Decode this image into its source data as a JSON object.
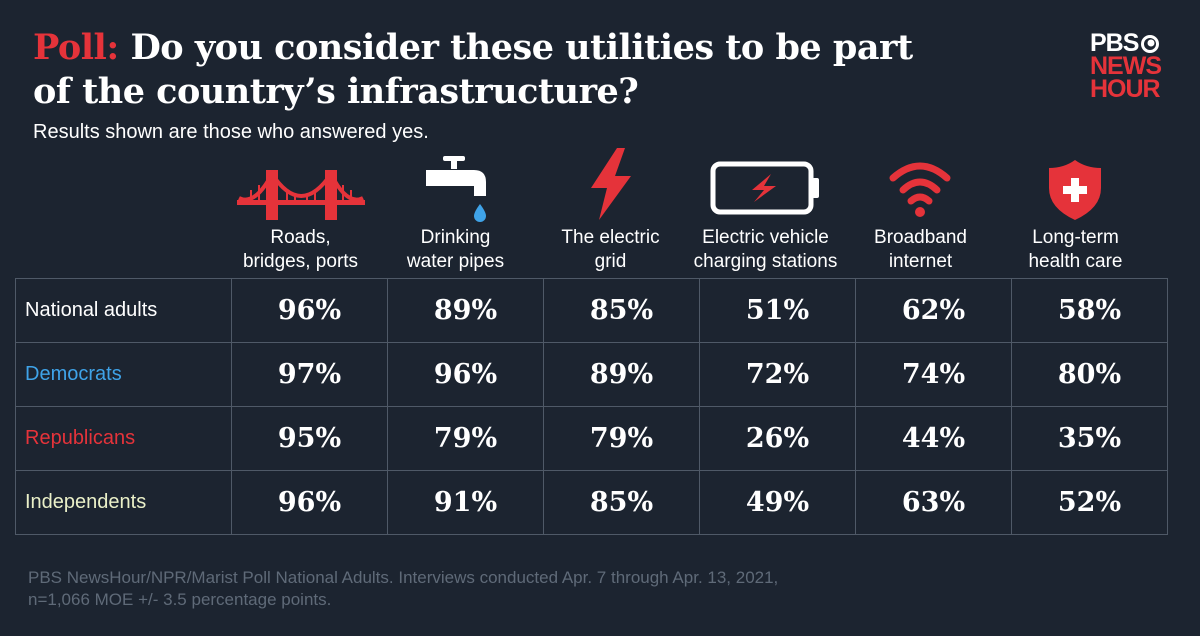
{
  "header": {
    "title_prefix": "Poll:",
    "title_rest": "Do you consider these utilities to be part of the country’s infrastructure?",
    "subtitle": "Results shown are those who answered yes."
  },
  "logo": {
    "line1": "PBS",
    "line2": "NEWS",
    "line3": "HOUR"
  },
  "footnote": "PBS NewsHour/NPR/Marist Poll National Adults. Interviews conducted Apr. 7 through Apr. 13, 2021, n=1,066 MOE +/- 3.5 percentage points.",
  "colors": {
    "accent_red": "#e5333a",
    "democrats": "#3fa3e8",
    "republicans": "#e5333a",
    "independents": "#eaf0c8",
    "background": "#1c2430",
    "grid_line": "#4f5967"
  },
  "chart_data": {
    "type": "table",
    "title": "Poll: Do you consider these utilities to be part of the country’s infrastructure?",
    "subtitle": "Results shown are those who answered yes.",
    "categories": [
      {
        "line1": "Roads,",
        "line2": "bridges, ports",
        "icon": "bridge-icon"
      },
      {
        "line1": "Drinking",
        "line2": "water pipes",
        "icon": "faucet-icon"
      },
      {
        "line1": "The electric",
        "line2": "grid",
        "icon": "lightning-icon"
      },
      {
        "line1": "Electric vehicle",
        "line2": "charging stations",
        "icon": "battery-icon"
      },
      {
        "line1": "Broadband",
        "line2": "internet",
        "icon": "wifi-icon"
      },
      {
        "line1": "Long-term",
        "line2": "health care",
        "icon": "health-shield-icon"
      }
    ],
    "rows": [
      {
        "name": "National adults",
        "color": "#ffffff",
        "values": [
          "96%",
          "89%",
          "85%",
          "51%",
          "62%",
          "58%"
        ]
      },
      {
        "name": "Democrats",
        "color": "#3fa3e8",
        "values": [
          "97%",
          "96%",
          "89%",
          "72%",
          "74%",
          "80%"
        ]
      },
      {
        "name": "Republicans",
        "color": "#e5333a",
        "values": [
          "95%",
          "79%",
          "79%",
          "26%",
          "44%",
          "35%"
        ]
      },
      {
        "name": "Independents",
        "color": "#eaf0c8",
        "values": [
          "96%",
          "91%",
          "85%",
          "49%",
          "63%",
          "52%"
        ]
      }
    ]
  }
}
